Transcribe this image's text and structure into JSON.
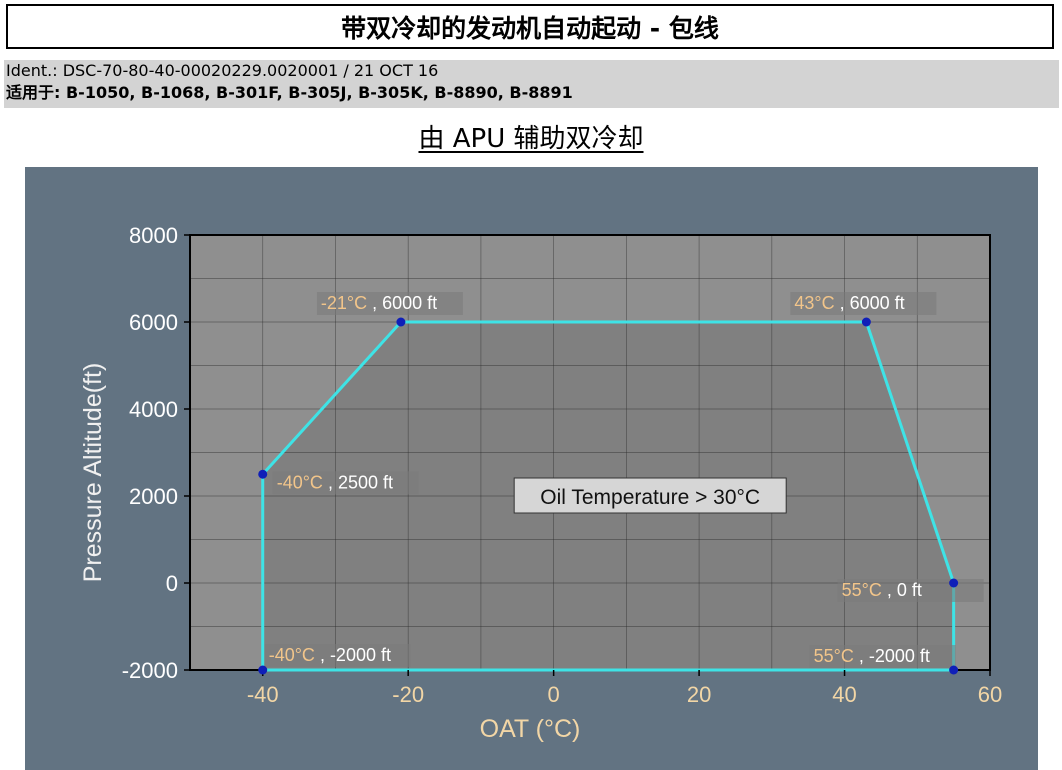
{
  "header": {
    "title": "带双冷却的发动机自动起动 - 包线",
    "ident": "Ident.: DSC-70-80-40-00020229.0020001 / 21 OCT 16",
    "applicable_label": "适用于:",
    "applicable_list": " B-1050, B-1068, B-301F, B-305J, B-305K, B-8890, B-8891"
  },
  "subtitle": "由 APU 辅助双冷却",
  "colors": {
    "panel": "#627382",
    "plot_bg": "#8f8f8f",
    "envelope_fill": "#808080",
    "envelope_line": "#3ee3e6",
    "point": "#0f1fb8",
    "tick_label": "#ffffff",
    "axis_label_x": "#f2d6a6",
    "callout_temp": "#f2c58a",
    "callout_alt": "#ffffff"
  },
  "chart_data": {
    "type": "area",
    "xlabel": "OAT (°C)",
    "ylabel": "Pressure Altitude(ft)",
    "xlim": [
      -50,
      60
    ],
    "ylim": [
      -2000,
      8000
    ],
    "xticks": [
      -40,
      -20,
      0,
      20,
      40,
      60
    ],
    "yticks": [
      -2000,
      0,
      2000,
      4000,
      6000,
      8000
    ],
    "grid": true,
    "series": [
      {
        "points": [
          {
            "x": -40,
            "y": -2000,
            "temp": "-40°C",
            "alt": "-2000 ft"
          },
          {
            "x": -40,
            "y": 2500,
            "temp": "-40°C",
            "alt": "2500 ft"
          },
          {
            "x": -21,
            "y": 6000,
            "temp": "-21°C",
            "alt": "6000 ft"
          },
          {
            "x": 43,
            "y": 6000,
            "temp": "43°C",
            "alt": "6000 ft"
          },
          {
            "x": 55,
            "y": 0,
            "temp": "55°C",
            "alt": "0 ft"
          },
          {
            "x": 55,
            "y": -2000,
            "temp": "55°C",
            "alt": "-2000 ft"
          }
        ]
      }
    ],
    "annotation": "Oil Temperature > 30°C"
  }
}
